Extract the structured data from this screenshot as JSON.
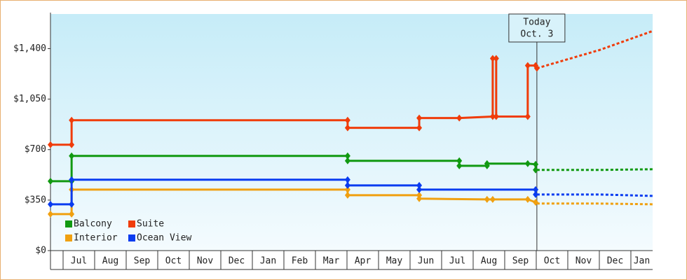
{
  "chart_data": {
    "type": "line",
    "xlim": [
      -0.4,
      18.69
    ],
    "ylim": [
      0,
      1640
    ],
    "yticks": [
      {
        "value": 0,
        "label": "$0"
      },
      {
        "value": 350,
        "label": "$350"
      },
      {
        "value": 700,
        "label": "$700"
      },
      {
        "value": 1050,
        "label": "$1,050"
      },
      {
        "value": 1400,
        "label": "$1,400"
      }
    ],
    "xticks": [
      {
        "value": 0,
        "label": "Jul"
      },
      {
        "value": 1,
        "label": "Aug"
      },
      {
        "value": 2,
        "label": "Sep"
      },
      {
        "value": 3,
        "label": "Oct"
      },
      {
        "value": 4,
        "label": "Nov"
      },
      {
        "value": 5,
        "label": "Dec"
      },
      {
        "value": 6,
        "label": "Jan"
      },
      {
        "value": 7,
        "label": "Feb"
      },
      {
        "value": 8,
        "label": "Mar"
      },
      {
        "value": 9,
        "label": "Apr"
      },
      {
        "value": 10,
        "label": "May"
      },
      {
        "value": 11,
        "label": "Jun"
      },
      {
        "value": 12,
        "label": "Jul"
      },
      {
        "value": 13,
        "label": "Aug"
      },
      {
        "value": 14,
        "label": "Sep"
      },
      {
        "value": 15,
        "label": "Oct"
      },
      {
        "value": 16,
        "label": "Nov"
      },
      {
        "value": 17,
        "label": "Dec"
      },
      {
        "value": 18,
        "label": "Jan"
      }
    ],
    "today": {
      "x": 15.02,
      "label": "Today",
      "date": "Oct. 3"
    },
    "series": [
      {
        "name": "Balcony",
        "color": "#119911",
        "x": [
          -0.4,
          0.27,
          0.27,
          9.02,
          9.02,
          12.56,
          12.56,
          13.44,
          13.44,
          14.73,
          14.98,
          14.98
        ],
        "values": [
          481,
          481,
          656,
          656,
          622,
          622,
          588,
          588,
          603,
          603,
          598,
          559
        ],
        "projection_x": [
          15.02,
          17,
          18.69
        ],
        "projection_values": [
          559,
          559,
          564
        ]
      },
      {
        "name": "Suite",
        "color": "#f03c0a",
        "x": [
          -0.4,
          0.27,
          0.27,
          9.02,
          9.02,
          11.29,
          11.29,
          12.56,
          13.62,
          13.62,
          13.73,
          13.73,
          14.73,
          14.73,
          14.98,
          15.02
        ],
        "values": [
          734,
          734,
          904,
          904,
          851,
          851,
          919,
          919,
          929,
          1332,
          1332,
          929,
          929,
          1283,
          1283,
          1264
        ],
        "projection_x": [
          15.02,
          17,
          18.69
        ],
        "projection_values": [
          1264,
          1390,
          1522
        ]
      },
      {
        "name": "Interior",
        "color": "#f0a010",
        "x": [
          -0.4,
          0.27,
          0.27,
          9.02,
          9.02,
          11.29,
          11.29,
          13.44,
          13.62,
          14.73,
          14.98
        ],
        "values": [
          253,
          253,
          423,
          423,
          384,
          384,
          360,
          355,
          355,
          355,
          335
        ],
        "projection_x": [
          15.02,
          17,
          18.69
        ],
        "projection_values": [
          326,
          326,
          321
        ]
      },
      {
        "name": "Ocean View",
        "color": "#0a3cf0",
        "x": [
          -0.4,
          0.27,
          0.27,
          9.02,
          9.02,
          11.29,
          11.29,
          14.98,
          14.98
        ],
        "values": [
          321,
          321,
          491,
          491,
          452,
          452,
          423,
          423,
          389
        ],
        "projection_x": [
          15.02,
          17,
          18.69
        ],
        "projection_values": [
          389,
          389,
          379
        ]
      }
    ]
  }
}
